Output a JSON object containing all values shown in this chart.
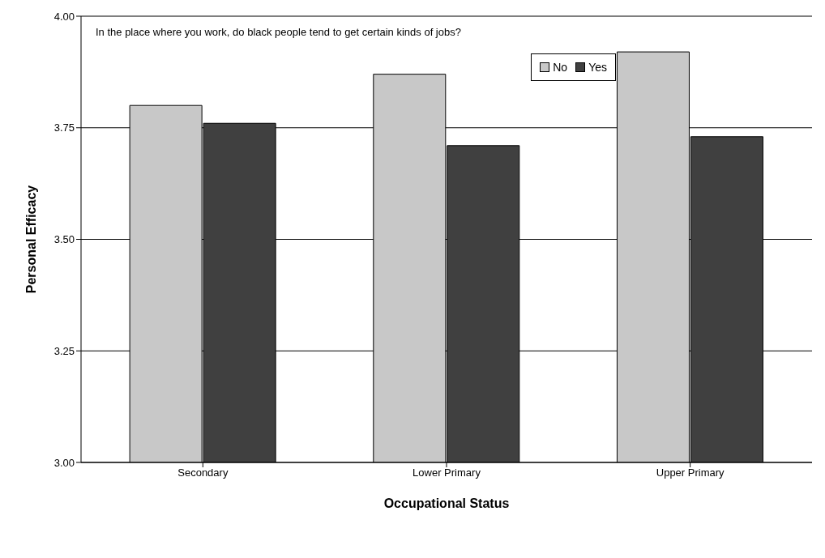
{
  "chart_data": {
    "type": "bar",
    "title": "In the place where you work, do black people tend to get certain kinds of jobs?",
    "xlabel": "Occupational Status",
    "ylabel": "Personal Efficacy",
    "categories": [
      "Secondary",
      "Lower Primary",
      "Upper Primary"
    ],
    "series": [
      {
        "name": "No",
        "color": "#c8c8c8",
        "values": [
          3.8,
          3.87,
          3.92
        ]
      },
      {
        "name": "Yes",
        "color": "#404040",
        "values": [
          3.76,
          3.71,
          3.73
        ]
      }
    ],
    "ylim": [
      3.0,
      4.0
    ],
    "yticks": [
      {
        "value": 3,
        "label": "3.00"
      },
      {
        "value": 3.25,
        "label": "3.25"
      },
      {
        "value": 3.5,
        "label": "3.50"
      },
      {
        "value": 3.75,
        "label": "3.75"
      },
      {
        "value": 4,
        "label": "4.00"
      }
    ],
    "grid": "y",
    "legend": "top right"
  }
}
